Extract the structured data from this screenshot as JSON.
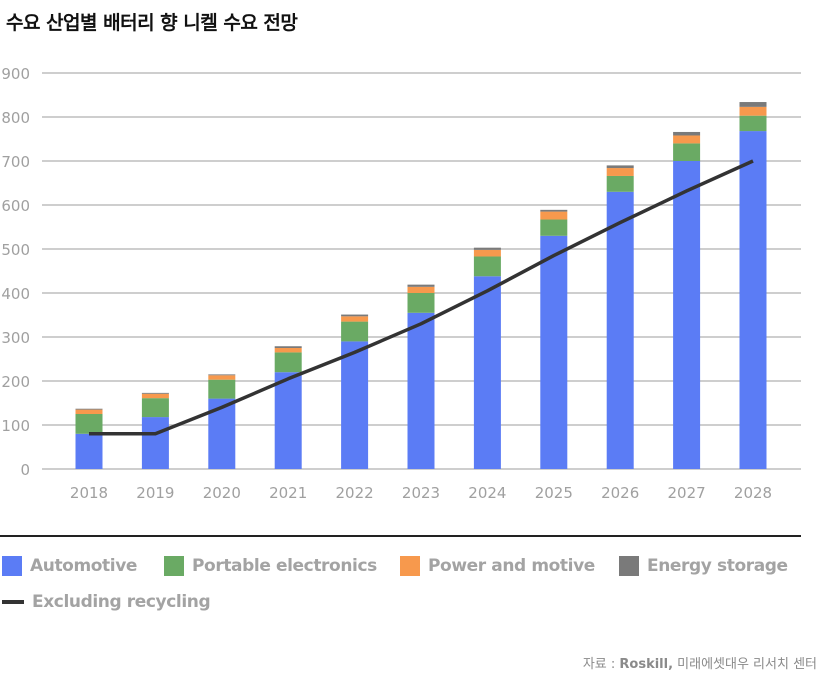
{
  "header": {
    "title": "수요 산업별 배터리 향 니켈 수요 전망"
  },
  "chart_data": {
    "type": "bar",
    "stacked": true,
    "categories": [
      "2018",
      "2019",
      "2020",
      "2021",
      "2022",
      "2023",
      "2024",
      "2025",
      "2026",
      "2027",
      "2028"
    ],
    "yticks": [
      "0",
      "100",
      "200",
      "300",
      "400",
      "500",
      "600",
      "700",
      "800",
      "900"
    ],
    "ylim": [
      0,
      900
    ],
    "grid": true,
    "legend_position": "bottom",
    "series": [
      {
        "name": "Automotive",
        "color": "#5b7cf5",
        "values": [
          80,
          118,
          160,
          220,
          290,
          355,
          438,
          530,
          630,
          700,
          768
        ]
      },
      {
        "name": "Portable electronics",
        "color": "#6aaa64",
        "values": [
          45,
          43,
          43,
          45,
          45,
          45,
          45,
          37,
          36,
          40,
          35
        ]
      },
      {
        "name": "Power and motive",
        "color": "#f7994d",
        "values": [
          10,
          10,
          10,
          10,
          12,
          14,
          15,
          18,
          18,
          18,
          20
        ]
      },
      {
        "name": "Energy storage",
        "color": "#7a7a7a",
        "values": [
          2,
          2,
          2,
          4,
          4,
          5,
          5,
          4,
          6,
          8,
          11
        ]
      }
    ],
    "line_series": {
      "name": "Excluding recycling",
      "color": "#333333",
      "values": [
        80,
        80,
        140,
        205,
        265,
        330,
        405,
        485,
        560,
        632,
        700
      ]
    }
  },
  "legend": {
    "items": [
      {
        "label": "Automotive",
        "color": "#5b7cf5"
      },
      {
        "label": "Portable electronics",
        "color": "#6aaa64"
      },
      {
        "label": "Power and motive",
        "color": "#f7994d"
      },
      {
        "label": "Energy storage",
        "color": "#7a7a7a"
      }
    ],
    "line_label": "Excluding recycling"
  },
  "source": {
    "prefix": "자료 : ",
    "name": "Roskill,",
    "rest": " 미래에셋대우 리서치 센터"
  }
}
